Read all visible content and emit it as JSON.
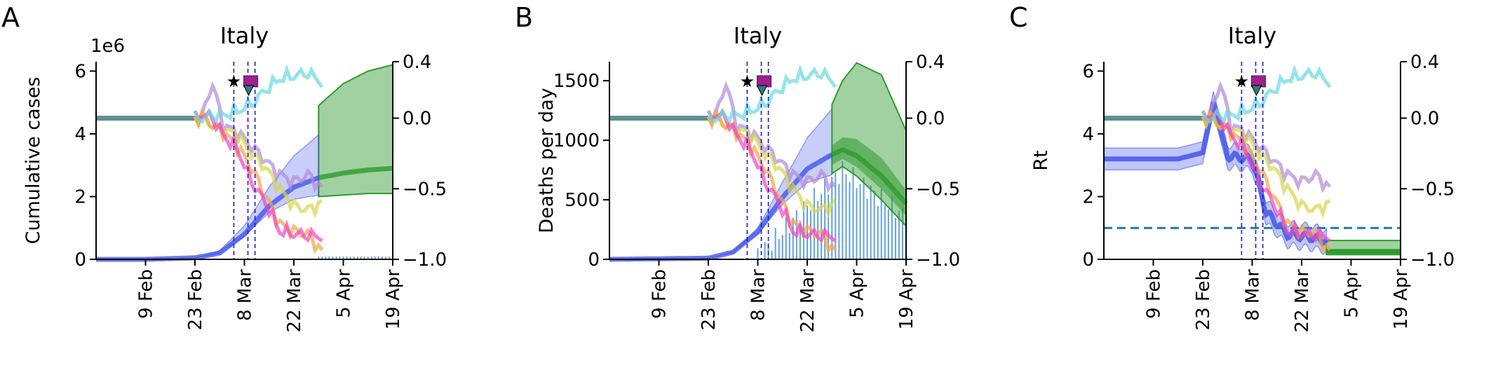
{
  "figure": {
    "panels": [
      {
        "letter": "A",
        "title": "Italy",
        "ylabel": "Cumulative cases",
        "exponent": "1e6"
      },
      {
        "letter": "B",
        "title": "Italy",
        "ylabel": "Deaths per day",
        "exponent": ""
      },
      {
        "letter": "C",
        "title": "Italy",
        "ylabel": "Rt",
        "exponent": ""
      }
    ]
  },
  "colors": {
    "fit": "#3a4ee8",
    "forecast": "#2e9a2e",
    "observed_bars": "#4a90d0",
    "mobility_pink": "#f044c8",
    "mobility_orange": "#f5a442",
    "mobility_yellow": "#d6d64a",
    "mobility_purple": "#b08ad8",
    "mobility_cyan": "#66d8e0",
    "baseline_teal": "#5f8f8f",
    "intervention_lines": "#1a1acc",
    "rt_threshold": "#1f77b4"
  },
  "chart_data": [
    {
      "type": "line",
      "title": "Italy",
      "xlabel": "",
      "ylabel": "Cumulative cases",
      "y_exponent_label": "1e6",
      "x_ticks": [
        "9 Feb",
        "23 Feb",
        "8 Mar",
        "22 Mar",
        "5 Apr",
        "19 Apr"
      ],
      "x_range": [
        "2020-01-26",
        "2020-04-19"
      ],
      "ylim": [
        0,
        6.3
      ],
      "y_ticks": [
        0,
        2,
        4,
        6
      ],
      "right_axis": {
        "ylim": [
          -1.0,
          0.4
        ],
        "ticks": [
          -1.0,
          -0.5,
          0.0,
          0.4
        ]
      },
      "intervention_dates": [
        "2020-03-05",
        "2020-03-09",
        "2020-03-11"
      ],
      "series": [
        {
          "role": "model fit",
          "x": [
            "2020-01-26",
            "2020-02-09",
            "2020-02-23",
            "2020-03-01",
            "2020-03-08",
            "2020-03-15",
            "2020-03-22",
            "2020-03-29"
          ],
          "y": [
            0.0,
            0.0,
            0.05,
            0.2,
            0.8,
            1.7,
            2.3,
            2.6
          ]
        },
        {
          "role": "forecast",
          "x": [
            "2020-03-29",
            "2020-04-05",
            "2020-04-12",
            "2020-04-19"
          ],
          "y": [
            2.6,
            2.75,
            2.85,
            2.9
          ],
          "lower": [
            2.0,
            2.05,
            2.1,
            2.1
          ],
          "upper": [
            4.9,
            5.6,
            6.0,
            6.2
          ]
        }
      ]
    },
    {
      "type": "line",
      "title": "Italy",
      "xlabel": "",
      "ylabel": "Deaths per day",
      "x_ticks": [
        "9 Feb",
        "23 Feb",
        "8 Mar",
        "22 Mar",
        "5 Apr",
        "19 Apr"
      ],
      "x_range": [
        "2020-01-26",
        "2020-04-19"
      ],
      "ylim": [
        0,
        1660
      ],
      "y_ticks": [
        0,
        500,
        1000,
        1500
      ],
      "right_axis": {
        "ylim": [
          -1.0,
          0.4
        ],
        "ticks": [
          -1.0,
          -0.5,
          0.0,
          0.4
        ]
      },
      "intervention_dates": [
        "2020-03-05",
        "2020-03-09",
        "2020-03-11"
      ],
      "series": [
        {
          "role": "model fit",
          "x": [
            "2020-01-26",
            "2020-02-23",
            "2020-03-01",
            "2020-03-08",
            "2020-03-15",
            "2020-03-22",
            "2020-03-29"
          ],
          "y": [
            0,
            10,
            60,
            230,
            520,
            760,
            880
          ]
        },
        {
          "role": "forecast",
          "x": [
            "2020-03-29",
            "2020-04-01",
            "2020-04-05",
            "2020-04-12",
            "2020-04-19"
          ],
          "y": [
            880,
            920,
            870,
            700,
            470
          ],
          "lower": [
            720,
            780,
            700,
            500,
            280
          ],
          "upper": [
            1300,
            1500,
            1650,
            1550,
            1080
          ]
        }
      ]
    },
    {
      "type": "line",
      "title": "Italy",
      "xlabel": "",
      "ylabel": "Rt",
      "x_ticks": [
        "9 Feb",
        "23 Feb",
        "8 Mar",
        "22 Mar",
        "5 Apr",
        "19 Apr"
      ],
      "x_range": [
        "2020-01-26",
        "2020-04-19"
      ],
      "ylim": [
        0,
        6.3
      ],
      "y_ticks": [
        0,
        2,
        4,
        6
      ],
      "right_axis": {
        "ylim": [
          -1.0,
          0.4
        ],
        "ticks": [
          -1.0,
          -0.5,
          0.0,
          0.4
        ]
      },
      "reference_line": {
        "y": 1.0,
        "style": "dashed"
      },
      "intervention_dates": [
        "2020-03-05",
        "2020-03-09",
        "2020-03-11"
      ],
      "series": [
        {
          "role": "Rt estimate",
          "x": [
            "2020-01-26",
            "2020-02-16",
            "2020-02-23",
            "2020-02-26",
            "2020-03-01",
            "2020-03-08",
            "2020-03-12",
            "2020-03-18",
            "2020-03-25",
            "2020-03-29"
          ],
          "y": [
            3.2,
            3.2,
            3.4,
            5.0,
            3.3,
            3.2,
            1.5,
            0.8,
            0.7,
            0.6
          ]
        },
        {
          "role": "forecast",
          "x": [
            "2020-03-29",
            "2020-04-19"
          ],
          "y": [
            0.25,
            0.25
          ],
          "lower": [
            0.15,
            0.15
          ],
          "upper": [
            0.6,
            0.6
          ]
        }
      ]
    }
  ],
  "x_ticks": [
    "9 Feb",
    "23 Feb",
    "8 Mar",
    "22 Mar",
    "5 Apr",
    "19 Apr"
  ],
  "left_ticks_cases": [
    "0",
    "2",
    "4",
    "6"
  ],
  "left_ticks_deaths": [
    "0",
    "500",
    "1000",
    "1500"
  ],
  "left_ticks_rt": [
    "0",
    "2",
    "4",
    "6"
  ],
  "right_ticks": [
    "0.4",
    "0.0",
    "−0.5",
    "−1.0"
  ]
}
